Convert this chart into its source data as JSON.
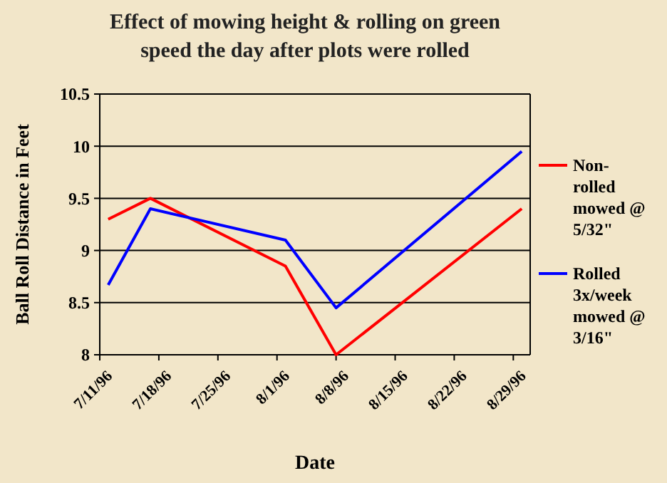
{
  "chart_data": {
    "type": "line",
    "title": "Effect of mowing height & rolling on green speed the day after plots were rolled",
    "xlabel": "Date",
    "ylabel": "Ball Roll Distance in Feet",
    "x": [
      "1996-07-12",
      "1996-07-17",
      "1996-08-02",
      "1996-08-08",
      "1996-08-30"
    ],
    "series": [
      {
        "name": "Non-rolled mowed @ 5/32\"",
        "color": "#ff0000",
        "values": [
          9.3,
          9.5,
          8.85,
          8.0,
          9.4
        ]
      },
      {
        "name": "Rolled 3x/week mowed @ 3/16\"",
        "color": "#0000ff",
        "values": [
          8.67,
          9.4,
          9.1,
          8.45,
          9.95
        ]
      }
    ],
    "xlim": [
      "1996-07-11",
      "1996-08-31"
    ],
    "xticks": [
      {
        "value": "1996-07-11",
        "label": "7/11/96"
      },
      {
        "value": "1996-07-18",
        "label": "7/18/96"
      },
      {
        "value": "1996-07-25",
        "label": "7/25/96"
      },
      {
        "value": "1996-08-01",
        "label": "8/1/96"
      },
      {
        "value": "1996-08-08",
        "label": "8/8/96"
      },
      {
        "value": "1996-08-15",
        "label": "8/15/96"
      },
      {
        "value": "1996-08-22",
        "label": "8/22/96"
      },
      {
        "value": "1996-08-29",
        "label": "8/29/96"
      }
    ],
    "ylim": [
      8,
      10.5
    ],
    "yticks": [
      8,
      8.5,
      9,
      9.5,
      10,
      10.5
    ],
    "grid": "y",
    "legend": "right",
    "marker": "none",
    "line_style": "solid"
  }
}
